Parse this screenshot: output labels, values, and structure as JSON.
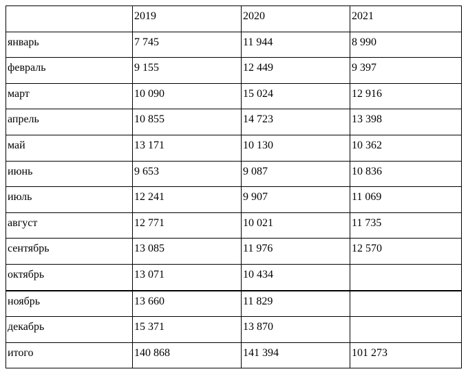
{
  "table": {
    "header": [
      null,
      "2019",
      "2020",
      "2021"
    ],
    "rows": [
      [
        "январь",
        "7 745",
        "11 944",
        "8 990"
      ],
      [
        "февраль",
        "9 155",
        "12 449",
        "9 397"
      ],
      [
        "март",
        "10 090",
        "15 024",
        "12 916"
      ],
      [
        "апрель",
        "10 855",
        "14 723",
        "13 398"
      ],
      [
        "май",
        "13 171",
        "10 130",
        "10 362"
      ],
      [
        "июнь",
        "9 653",
        "9 087",
        "10 836"
      ],
      [
        "июль",
        "12 241",
        "9 907",
        "11 069"
      ],
      [
        "август",
        "12 771",
        "10 021",
        "11 735"
      ],
      [
        "сентябрь",
        "13 085",
        "11 976",
        "12 570"
      ],
      [
        "октябрь",
        "13 071",
        "10 434",
        null
      ],
      [
        "ноябрь",
        "13 660",
        "11 829",
        null
      ],
      [
        "декабрь",
        "15 371",
        "13 870",
        null
      ],
      [
        "итого",
        "140 868",
        "141 394",
        "101 273"
      ]
    ]
  }
}
